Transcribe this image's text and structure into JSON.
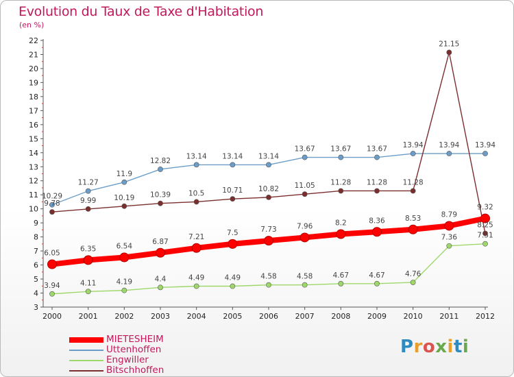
{
  "chart_data": {
    "type": "line",
    "title": "Evolution du Taux de Taxe d'Habitation",
    "subtitle": "(en %)",
    "categories": [
      "2000",
      "2001",
      "2002",
      "2003",
      "2004",
      "2005",
      "2006",
      "2007",
      "2008",
      "2009",
      "2010",
      "2011",
      "2012"
    ],
    "ylim": [
      3,
      22
    ],
    "yticks": [
      3,
      4,
      5,
      6,
      7,
      8,
      9,
      10,
      11,
      12,
      13,
      14,
      15,
      16,
      17,
      18,
      19,
      20,
      21,
      22
    ],
    "grid": false,
    "legend_position": "bottom-left",
    "series": [
      {
        "name": "MIETESHEIM",
        "color": "#ff0000",
        "values": [
          6.05,
          6.35,
          6.54,
          6.87,
          7.21,
          7.5,
          7.73,
          7.96,
          8.2,
          8.36,
          8.53,
          8.79,
          9.32
        ],
        "labels": [
          "6.05",
          "6.35",
          "6.54",
          "6.87",
          "7.21",
          "7.5",
          "7.73",
          "7.96",
          "8.2",
          "8.36",
          "8.53",
          "8.79",
          "9.32"
        ]
      },
      {
        "name": "Uttenhoffen",
        "color": "#6b9dc8",
        "values": [
          10.29,
          11.27,
          11.9,
          12.82,
          13.14,
          13.14,
          13.14,
          13.67,
          13.67,
          13.67,
          13.94,
          13.94,
          13.94
        ],
        "labels": [
          "10.29",
          "11.27",
          "11.9",
          "12.82",
          "13.14",
          "13.14",
          "13.14",
          "13.67",
          "13.67",
          "13.67",
          "13.94",
          "13.94",
          "13.94"
        ]
      },
      {
        "name": "Engwiller",
        "color": "#9ed86a",
        "values": [
          3.94,
          4.11,
          4.19,
          4.4,
          4.49,
          4.49,
          4.58,
          4.58,
          4.67,
          4.67,
          4.76,
          7.36,
          7.51
        ],
        "labels": [
          "3.94",
          "4.11",
          "4.19",
          "4.4",
          "4.49",
          "4.49",
          "4.58",
          "4.58",
          "4.67",
          "4.67",
          "4.76",
          "7.36",
          "7.51"
        ]
      },
      {
        "name": "Bitschhoffen",
        "color": "#7a2e2e",
        "values": [
          9.78,
          9.99,
          10.19,
          10.39,
          10.5,
          10.71,
          10.82,
          11.05,
          11.28,
          11.28,
          11.28,
          21.15,
          8.25
        ],
        "labels": [
          "9.78",
          "9.99",
          "10.19",
          "10.39",
          "10.5",
          "10.71",
          "10.82",
          "11.05",
          "11.28",
          "11.28",
          "11.28",
          "21.15",
          "8.25"
        ]
      }
    ]
  },
  "logo": {
    "letters": [
      "P",
      "r",
      "o",
      "x",
      "i",
      "t",
      "i"
    ],
    "colors": [
      "#2e8bc0",
      "#e8a02a",
      "#d9534f",
      "#6aa84f",
      "#e8a02a",
      "#2e8bc0",
      "#6aa84f"
    ]
  }
}
